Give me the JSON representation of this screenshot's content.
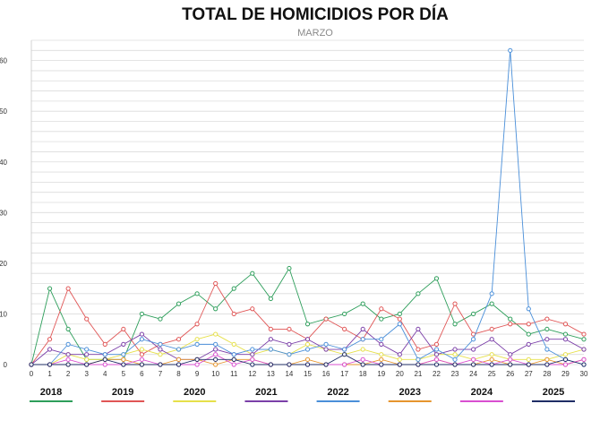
{
  "chart_data": {
    "type": "line",
    "title": "TOTAL DE HOMICIDIOS POR DÍA",
    "subtitle": "MARZO",
    "xlabel": "",
    "ylabel": "",
    "x": [
      0,
      1,
      2,
      3,
      4,
      5,
      6,
      7,
      8,
      9,
      10,
      11,
      12,
      13,
      14,
      15,
      16,
      17,
      18,
      19,
      20,
      21,
      22,
      23,
      24,
      25,
      26,
      27,
      28,
      29,
      30
    ],
    "x_tick_labels": [
      "0",
      "1",
      "2",
      "3",
      "4",
      "5",
      "6",
      "7",
      "8",
      "9",
      "10",
      "11",
      "12",
      "13",
      "14",
      "15",
      "16",
      "17",
      "18",
      "19",
      "20",
      "21",
      "22",
      "23",
      "24",
      "25",
      "26",
      "27",
      "28",
      "29",
      "30"
    ],
    "xlim": [
      0,
      30
    ],
    "ylim": [
      0,
      64
    ],
    "y_ticks": [
      0,
      10,
      20,
      30,
      40,
      50,
      60
    ],
    "y_tick_labels": [
      "0",
      "10",
      "20",
      "30",
      "40",
      "50",
      "60"
    ],
    "grid": true,
    "legend_position": "bottom",
    "series": [
      {
        "name": "2018",
        "color": "#2e9e5b",
        "values": [
          0,
          15,
          7,
          1,
          1,
          1,
          10,
          9,
          12,
          14,
          11,
          15,
          18,
          13,
          19,
          8,
          9,
          10,
          12,
          9,
          10,
          14,
          17,
          8,
          10,
          12,
          9,
          6,
          7,
          6,
          5
        ]
      },
      {
        "name": "2019",
        "color": "#e05555",
        "values": [
          0,
          5,
          15,
          9,
          4,
          7,
          2,
          4,
          5,
          8,
          16,
          10,
          11,
          7,
          7,
          5,
          9,
          7,
          5,
          11,
          9,
          3,
          4,
          12,
          6,
          7,
          8,
          8,
          9,
          8,
          6
        ]
      },
      {
        "name": "2020",
        "color": "#e6e04a",
        "values": [
          0,
          0,
          2,
          1,
          1,
          2,
          3,
          2,
          3,
          5,
          6,
          4,
          2,
          3,
          2,
          4,
          3,
          2,
          3,
          2,
          1,
          1,
          2,
          2,
          1,
          2,
          1,
          1,
          1,
          2,
          3
        ]
      },
      {
        "name": "2021",
        "color": "#7b3fa8",
        "values": [
          0,
          3,
          2,
          2,
          2,
          4,
          6,
          3,
          1,
          1,
          3,
          2,
          2,
          5,
          4,
          5,
          3,
          3,
          7,
          4,
          2,
          7,
          2,
          3,
          3,
          5,
          2,
          4,
          5,
          5,
          3
        ]
      },
      {
        "name": "2022",
        "color": "#4a8fd9",
        "values": [
          0,
          0,
          4,
          3,
          2,
          2,
          5,
          4,
          3,
          4,
          4,
          2,
          3,
          3,
          2,
          3,
          4,
          3,
          5,
          5,
          8,
          1,
          3,
          1,
          5,
          14,
          62,
          11,
          3,
          1,
          0
        ]
      },
      {
        "name": "2023",
        "color": "#e6952e",
        "values": [
          0,
          0,
          0,
          0,
          1,
          1,
          0,
          0,
          1,
          1,
          0,
          1,
          1,
          0,
          0,
          1,
          0,
          0,
          0,
          1,
          0,
          0,
          1,
          0,
          0,
          1,
          0,
          0,
          1,
          0,
          1
        ]
      },
      {
        "name": "2024",
        "color": "#d94fd0",
        "values": [
          0,
          0,
          1,
          0,
          0,
          0,
          1,
          0,
          0,
          0,
          2,
          0,
          1,
          0,
          0,
          0,
          0,
          0,
          1,
          0,
          0,
          0,
          1,
          0,
          1,
          0,
          1,
          0,
          0,
          0,
          1
        ]
      },
      {
        "name": "2025",
        "color": "#1f2d66",
        "values": [
          0,
          0,
          0,
          0,
          1,
          0,
          0,
          0,
          0,
          1,
          1,
          1,
          0,
          0,
          0,
          0,
          0,
          2,
          0,
          0,
          0,
          0,
          0,
          0,
          0,
          0,
          0,
          0,
          0,
          1,
          0
        ]
      }
    ]
  }
}
